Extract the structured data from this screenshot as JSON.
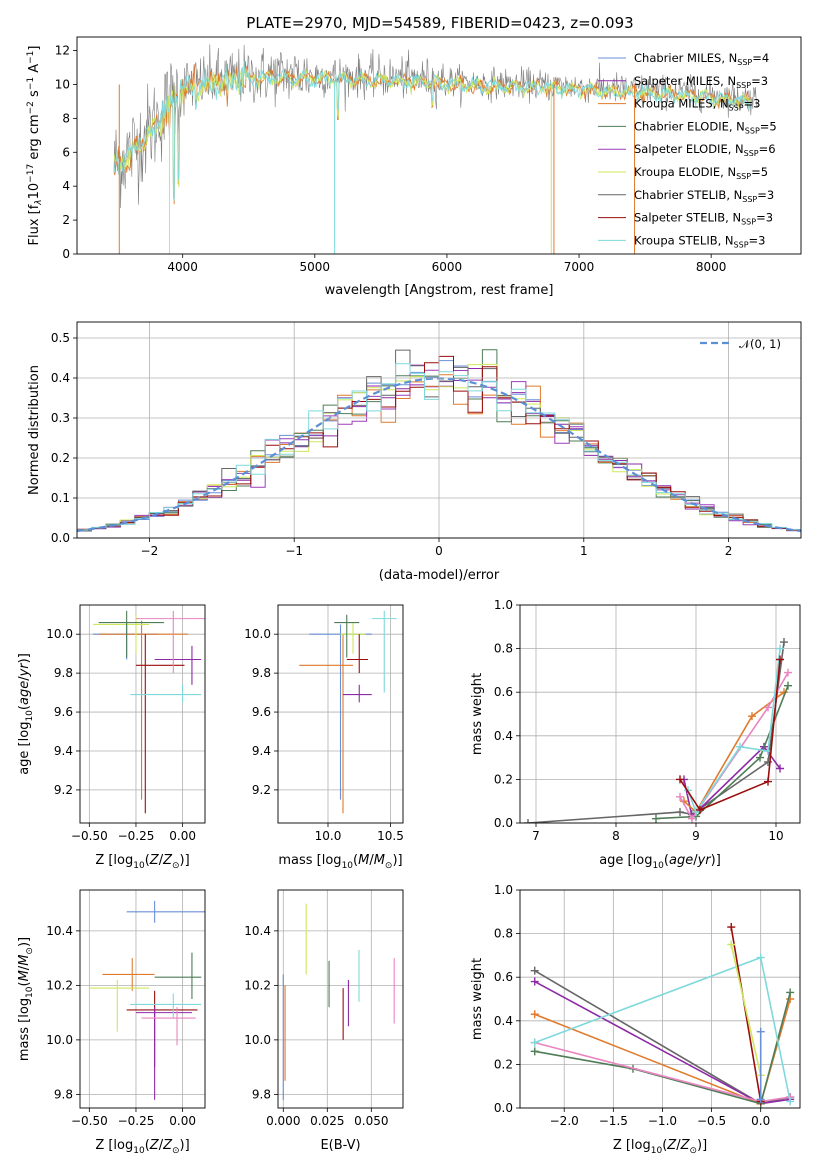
{
  "title": "PLATE=2970, MJD=54589, FIBERID=0423, z=0.093",
  "colors": {
    "Chabrier MILES": "#6a8fd9",
    "Salpeter MILES": "#8e2aa7",
    "Kroupa MILES": "#e07a2c",
    "Chabrier ELODIE": "#4f7d57",
    "Salpeter ELODIE": "#9b3fb8",
    "Kroupa ELODIE": "#cde85d",
    "Chabrier STELIB": "#666666",
    "Salpeter STELIB": "#9b0d0d",
    "Kroupa STELIB": "#7fd9dc",
    "grey_data": "#7f7f7f",
    "pink": "#e985c0",
    "gauss": "#5b8fd6"
  },
  "chart_data": [
    {
      "id": "spectrum",
      "type": "line",
      "xlabel": "wavelength [Angstrom, rest frame]",
      "ylabel": "Flux [f_λ10^-17 erg cm^-2 s^-1 A^-1]",
      "ylabel_parts": [
        "Flux [f",
        "λ",
        "10",
        "−17",
        " erg cm",
        "−2",
        " s",
        "−1",
        " A",
        "−1",
        "]"
      ],
      "xlim": [
        3200,
        8680
      ],
      "ylim": [
        0,
        12.8
      ],
      "xticks": [
        4000,
        5000,
        6000,
        7000,
        8000
      ],
      "yticks": [
        0,
        2,
        4,
        6,
        8,
        10,
        12
      ],
      "legend": [
        {
          "label": "Chabrier MILES, N",
          "n": "4"
        },
        {
          "label": "Salpeter MILES, N",
          "n": "3"
        },
        {
          "label": "Kroupa MILES, N",
          "n": "3"
        },
        {
          "label": "Chabrier ELODIE, N",
          "n": "5"
        },
        {
          "label": "Salpeter ELODIE, N",
          "n": "6"
        },
        {
          "label": "Kroupa ELODIE, N",
          "n": "5"
        },
        {
          "label": "Chabrier STELIB, N",
          "n": "3"
        },
        {
          "label": "Salpeter STELIB, N",
          "n": "3"
        },
        {
          "label": "Kroupa STELIB, N",
          "n": "3"
        }
      ],
      "legend_sub": "SSP",
      "continuum": {
        "x": [
          3480,
          3600,
          3800,
          4000,
          4300,
          4700,
          5200,
          5700,
          6200,
          6700,
          7200,
          7700,
          8300
        ],
        "y": [
          5.3,
          6.0,
          7.8,
          9.9,
          10.4,
          10.6,
          10.5,
          10.4,
          10.1,
          10.0,
          9.8,
          9.6,
          9.2
        ]
      }
    },
    {
      "id": "residuals",
      "type": "histogram",
      "xlabel": "(data-model)/error",
      "ylabel": "Normed distribution",
      "xlim": [
        -2.5,
        2.5
      ],
      "ylim": [
        0,
        0.54
      ],
      "xticks": [
        -2,
        -1,
        0,
        1,
        2
      ],
      "yticks": [
        0.0,
        0.1,
        0.2,
        0.3,
        0.4,
        0.5
      ],
      "legend": "𝒩(0, 1)",
      "bin_width": 0.1,
      "peak_value": 0.5
    },
    {
      "id": "age-vs-Z",
      "type": "errorbar",
      "xlabel": "Z [log10(Z/Z⊙)]",
      "ylabel": "age [log10(age/yr)]",
      "xlim": [
        -0.55,
        0.12
      ],
      "ylim": [
        9.03,
        10.15
      ],
      "xticks": [
        -0.5,
        -0.25,
        0.0
      ],
      "yticks": [
        9.2,
        9.4,
        9.6,
        9.8,
        10.0
      ],
      "points": [
        {
          "x": -0.3,
          "y": 10.0,
          "xe": [
            -0.48,
            -0.13
          ],
          "ye": [
            9.87,
            10.06
          ]
        },
        {
          "x": -0.22,
          "y": 10.0,
          "xe": [
            -0.45,
            0.03
          ],
          "ye": [
            9.15,
            10.07
          ]
        },
        {
          "x": -0.25,
          "y": 10.05,
          "xe": [
            -0.48,
            -0.18
          ],
          "ye": [
            9.9,
            10.1
          ]
        },
        {
          "x": -0.3,
          "y": 10.06,
          "xe": [
            -0.45,
            -0.1
          ],
          "ye": [
            9.88,
            10.12
          ]
        },
        {
          "x": -0.2,
          "y": 9.84,
          "xe": [
            -0.25,
            0.01
          ],
          "ye": [
            9.08,
            10.0
          ]
        },
        {
          "x": 0.05,
          "y": 9.87,
          "xe": [
            -0.15,
            0.1
          ],
          "ye": [
            9.74,
            9.94
          ]
        },
        {
          "x": 0.0,
          "y": 9.69,
          "xe": [
            -0.28,
            0.1
          ],
          "ye": [
            9.65,
            9.74
          ]
        },
        {
          "x": -0.05,
          "y": 10.08,
          "xe": [
            -0.25,
            0.12
          ],
          "ye": [
            9.8,
            10.12
          ]
        }
      ]
    },
    {
      "id": "age-vs-mass",
      "type": "errorbar",
      "xlabel": "mass [log10(M/M⊙)]",
      "ylabel": "",
      "xlim": [
        9.6,
        10.6
      ],
      "ylim": [
        9.03,
        10.15
      ],
      "xticks": [
        10.0,
        10.5
      ],
      "yticks": [
        9.2,
        9.4,
        9.6,
        9.8,
        10.0
      ],
      "points": [
        {
          "x": 10.1,
          "y": 10.0,
          "xe": [
            9.85,
            10.35
          ],
          "ye": [
            9.15,
            10.05
          ]
        },
        {
          "x": 10.12,
          "y": 9.84,
          "xe": [
            9.77,
            10.2
          ],
          "ye": [
            9.08,
            10.0
          ]
        },
        {
          "x": 10.2,
          "y": 10.0,
          "xe": [
            10.1,
            10.3
          ],
          "ye": [
            9.9,
            10.06
          ]
        },
        {
          "x": 10.15,
          "y": 10.06,
          "xe": [
            10.05,
            10.25
          ],
          "ye": [
            9.88,
            10.1
          ]
        },
        {
          "x": 10.25,
          "y": 9.87,
          "xe": [
            10.15,
            10.32
          ],
          "ye": [
            9.8,
            10.0
          ]
        },
        {
          "x": 10.25,
          "y": 9.69,
          "xe": [
            10.12,
            10.35
          ],
          "ye": [
            9.65,
            9.74
          ]
        },
        {
          "x": 10.45,
          "y": 10.08,
          "xe": [
            10.35,
            10.55
          ],
          "ye": [
            9.7,
            10.12
          ]
        }
      ]
    },
    {
      "id": "mass-weight-vs-age",
      "type": "line",
      "xlabel": "age [log10(age/yr)]",
      "ylabel": "mass weight",
      "xlim": [
        6.8,
        10.3
      ],
      "ylim": [
        0,
        1.0
      ],
      "xticks": [
        7,
        8,
        9,
        10
      ],
      "yticks": [
        0.0,
        0.2,
        0.4,
        0.6,
        0.8,
        1.0
      ],
      "series": [
        {
          "x": [
            6.9,
            8.8,
            8.95,
            9.9,
            10.1
          ],
          "y": [
            0.0,
            0.05,
            0.04,
            0.28,
            0.83
          ]
        },
        {
          "x": [
            8.85,
            8.95,
            9.85,
            10.05
          ],
          "y": [
            0.2,
            0.03,
            0.35,
            0.25
          ]
        },
        {
          "x": [
            8.85,
            9.0,
            9.7,
            10.1
          ],
          "y": [
            0.1,
            0.05,
            0.49,
            0.6
          ]
        },
        {
          "x": [
            8.5,
            9.0,
            9.8,
            10.15
          ],
          "y": [
            0.02,
            0.03,
            0.3,
            0.63
          ]
        },
        {
          "x": [
            8.8,
            8.95,
            9.9,
            10.15
          ],
          "y": [
            0.12,
            0.02,
            0.53,
            0.69
          ]
        },
        {
          "x": [
            8.9,
            9.0,
            9.55,
            9.9,
            10.05
          ],
          "y": [
            0.15,
            0.05,
            0.35,
            0.33,
            0.8
          ]
        },
        {
          "x": [
            8.8,
            9.05,
            9.9,
            10.05
          ],
          "y": [
            0.2,
            0.06,
            0.19,
            0.75
          ]
        }
      ]
    },
    {
      "id": "mass-vs-Z",
      "type": "errorbar",
      "xlabel": "Z [log10(Z/Z⊙)]",
      "ylabel": "mass [log10(M/M⊙)]",
      "xlim": [
        -0.55,
        0.12
      ],
      "ylim": [
        9.75,
        10.55
      ],
      "xticks": [
        -0.5,
        -0.25,
        0.0
      ],
      "yticks": [
        9.8,
        10.0,
        10.2,
        10.4
      ],
      "points": [
        {
          "x": -0.15,
          "y": 10.47,
          "xe": [
            -0.3,
            0.12
          ],
          "ye": [
            10.43,
            10.51
          ]
        },
        {
          "x": -0.27,
          "y": 10.24,
          "xe": [
            -0.43,
            -0.15
          ],
          "ye": [
            10.18,
            10.3
          ]
        },
        {
          "x": -0.35,
          "y": 10.19,
          "xe": [
            -0.5,
            -0.18
          ],
          "ye": [
            10.03,
            10.22
          ]
        },
        {
          "x": 0.05,
          "y": 10.23,
          "xe": [
            -0.15,
            0.1
          ],
          "ye": [
            10.15,
            10.32
          ]
        },
        {
          "x": -0.15,
          "y": 10.11,
          "xe": [
            -0.3,
            0.08
          ],
          "ye": [
            9.9,
            10.18
          ]
        },
        {
          "x": -0.15,
          "y": 10.1,
          "xe": [
            -0.25,
            0.05
          ],
          "ye": [
            9.78,
            10.12
          ]
        },
        {
          "x": -0.05,
          "y": 10.13,
          "xe": [
            -0.28,
            0.1
          ],
          "ye": [
            10.08,
            10.17
          ]
        },
        {
          "x": -0.03,
          "y": 10.08,
          "xe": [
            -0.22,
            0.07
          ],
          "ye": [
            9.98,
            10.12
          ]
        }
      ]
    },
    {
      "id": "mass-vs-EBV",
      "type": "errorbar",
      "xlabel": "E(B-V)",
      "ylabel": "",
      "xlim": [
        -0.003,
        0.068
      ],
      "ylim": [
        9.75,
        10.55
      ],
      "xticks": [
        0.0,
        0.025,
        0.05
      ],
      "xticklabels": [
        "0.000",
        "0.025",
        "0.050"
      ],
      "yticks": [
        9.8,
        10.0,
        10.2,
        10.4
      ],
      "points": [
        {
          "x": 0.0,
          "ye": [
            9.78,
            10.24
          ]
        },
        {
          "x": 0.001,
          "ye": [
            9.85,
            10.2
          ]
        },
        {
          "x": 0.013,
          "ye": [
            10.24,
            10.5
          ]
        },
        {
          "x": 0.026,
          "ye": [
            10.12,
            10.29
          ]
        },
        {
          "x": 0.034,
          "ye": [
            10.0,
            10.19
          ]
        },
        {
          "x": 0.037,
          "ye": [
            10.05,
            10.22
          ]
        },
        {
          "x": 0.043,
          "ye": [
            10.14,
            10.33
          ]
        },
        {
          "x": 0.063,
          "ye": [
            10.06,
            10.3
          ]
        }
      ]
    },
    {
      "id": "mass-weight-vs-Z",
      "type": "line",
      "xlabel": "Z [log10(Z/Z⊙)]",
      "ylabel": "mass weight",
      "xlim": [
        -2.45,
        0.4
      ],
      "ylim": [
        0,
        1.0
      ],
      "xticks": [
        -2.0,
        -1.5,
        -1.0,
        -0.5,
        0.0
      ],
      "yticks": [
        0.0,
        0.2,
        0.4,
        0.6,
        0.8,
        1.0
      ],
      "series": [
        {
          "x": [
            -2.3,
            0.0,
            0.3
          ],
          "y": [
            0.63,
            0.02,
            0.05
          ]
        },
        {
          "x": [
            -2.3,
            0.0,
            0.3
          ],
          "y": [
            0.58,
            0.02,
            0.04
          ]
        },
        {
          "x": [
            -2.3,
            0.0,
            0.3
          ],
          "y": [
            0.43,
            0.02,
            0.5
          ]
        },
        {
          "x": [
            -2.3,
            -1.3,
            0.0,
            0.3
          ],
          "y": [
            0.26,
            0.18,
            0.02,
            0.53
          ]
        },
        {
          "x": [
            -2.3,
            0.0,
            0.3
          ],
          "y": [
            0.3,
            0.03,
            0.05
          ]
        },
        {
          "x": [
            -2.3,
            0.0,
            0.3
          ],
          "y": [
            0.3,
            0.69,
            0.03
          ]
        },
        {
          "x": [
            -0.3,
            0.0
          ],
          "y": [
            0.83,
            0.03
          ]
        },
        {
          "x": [
            -0.3,
            0.0
          ],
          "y": [
            0.75,
            0.15
          ]
        },
        {
          "x": [
            0.0,
            0.0
          ],
          "y": [
            0.35,
            0.04
          ]
        }
      ]
    }
  ]
}
